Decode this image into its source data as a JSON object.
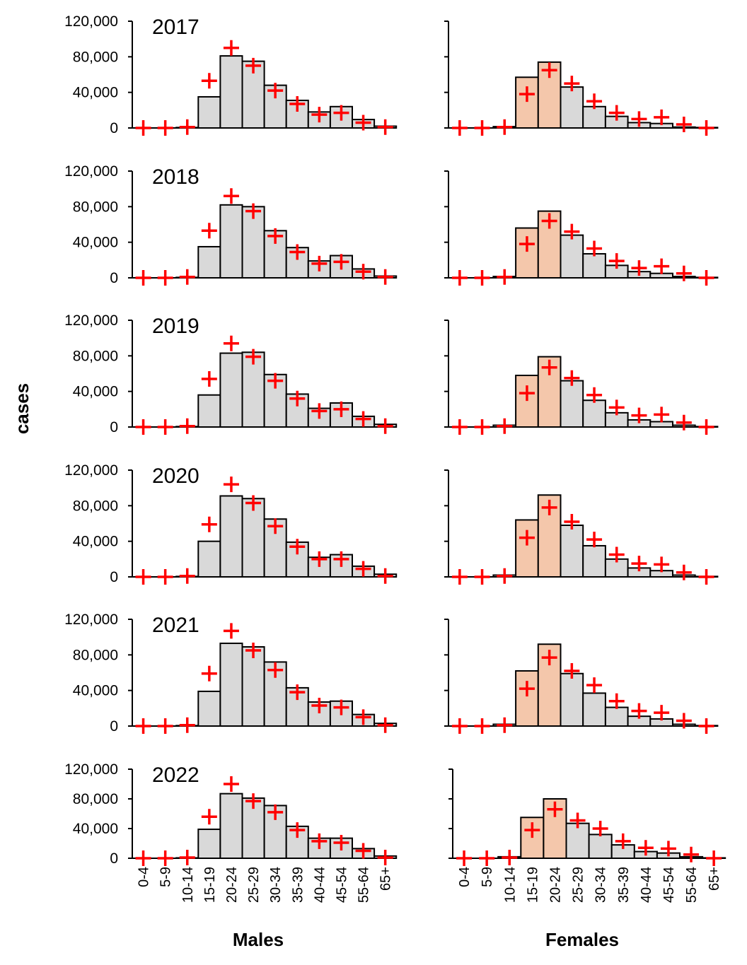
{
  "chart_data": {
    "type": "bar",
    "ylabel": "cases",
    "ylim": [
      0,
      120000
    ],
    "yticks": [
      0,
      40000,
      80000,
      120000
    ],
    "ytick_labels": [
      "0",
      "40,000",
      "80,000",
      "120,000"
    ],
    "categories": [
      "0-4",
      "5-9",
      "10-14",
      "15-19",
      "20-24",
      "25-29",
      "30-34",
      "35-39",
      "40-44",
      "45-54",
      "55-64",
      "65+"
    ],
    "column_labels": {
      "males": "Males",
      "females": "Females"
    },
    "colors": {
      "bar": "#d9d9d9",
      "highlight": "#f4c7ab",
      "marker": "#ff0000",
      "outline": "#000000"
    },
    "highlight_categories_females": [
      "15-19",
      "20-24"
    ],
    "marker_type": "cross",
    "panels": [
      {
        "year": "2017",
        "sex": "males",
        "bars": [
          0,
          0,
          500,
          35000,
          81000,
          75000,
          48000,
          31000,
          18000,
          24000,
          9500,
          2000
        ],
        "markers": [
          0,
          0,
          1000,
          53000,
          90000,
          70000,
          42000,
          27000,
          15000,
          17000,
          6000,
          1000
        ]
      },
      {
        "year": "2017",
        "sex": "females",
        "bars": [
          0,
          0,
          1500,
          57000,
          74000,
          46000,
          24000,
          13000,
          6000,
          5000,
          1000,
          500
        ],
        "markers": [
          0,
          0,
          1000,
          38000,
          65000,
          50000,
          30000,
          17000,
          10000,
          12000,
          4000,
          0
        ]
      },
      {
        "year": "2018",
        "sex": "males",
        "bars": [
          0,
          0,
          500,
          35000,
          82000,
          80000,
          53000,
          34000,
          19000,
          25000,
          10000,
          2000
        ],
        "markers": [
          0,
          0,
          1000,
          53000,
          92000,
          75000,
          47000,
          29000,
          16000,
          18000,
          7000,
          1000
        ]
      },
      {
        "year": "2018",
        "sex": "females",
        "bars": [
          0,
          0,
          1500,
          56000,
          75000,
          48000,
          27000,
          14000,
          7000,
          5000,
          1500,
          500
        ],
        "markers": [
          0,
          0,
          1000,
          38000,
          64000,
          52000,
          33000,
          19000,
          11000,
          13000,
          5000,
          0
        ]
      },
      {
        "year": "2019",
        "sex": "males",
        "bars": [
          0,
          0,
          500,
          36000,
          83000,
          84000,
          59000,
          37000,
          21000,
          27000,
          12000,
          3000
        ],
        "markers": [
          0,
          0,
          1000,
          54000,
          94000,
          79000,
          52000,
          32000,
          18000,
          20000,
          9000,
          1000
        ]
      },
      {
        "year": "2019",
        "sex": "females",
        "bars": [
          0,
          0,
          2000,
          58000,
          79000,
          52000,
          30000,
          16000,
          8000,
          6000,
          2000,
          500
        ],
        "markers": [
          0,
          0,
          1000,
          38000,
          67000,
          55000,
          36000,
          22000,
          13000,
          14000,
          5000,
          0
        ]
      },
      {
        "year": "2020",
        "sex": "males",
        "bars": [
          0,
          0,
          500,
          40000,
          91000,
          88000,
          65000,
          39000,
          22000,
          25000,
          12000,
          3000
        ],
        "markers": [
          0,
          0,
          1000,
          59000,
          104000,
          83000,
          57000,
          34000,
          20000,
          20000,
          9000,
          1000
        ]
      },
      {
        "year": "2020",
        "sex": "females",
        "bars": [
          0,
          0,
          2000,
          64000,
          92000,
          58000,
          35000,
          20000,
          10000,
          7000,
          2000,
          500
        ],
        "markers": [
          0,
          0,
          1000,
          44000,
          78000,
          62000,
          42000,
          25000,
          15000,
          14000,
          5000,
          0
        ]
      },
      {
        "year": "2021",
        "sex": "males",
        "bars": [
          0,
          0,
          500,
          39000,
          93000,
          89000,
          72000,
          43000,
          27000,
          28000,
          13000,
          3000
        ],
        "markers": [
          0,
          0,
          1000,
          59000,
          107000,
          85000,
          63000,
          38000,
          23000,
          21000,
          10000,
          1000
        ]
      },
      {
        "year": "2021",
        "sex": "females",
        "bars": [
          0,
          0,
          2000,
          62000,
          92000,
          59000,
          37000,
          21000,
          11000,
          8000,
          2000,
          500
        ],
        "markers": [
          0,
          0,
          1000,
          42000,
          77000,
          62000,
          46000,
          28000,
          17000,
          15000,
          6000,
          0
        ]
      },
      {
        "year": "2022",
        "sex": "males",
        "bars": [
          0,
          0,
          500,
          39000,
          87000,
          81000,
          71000,
          43000,
          27000,
          27000,
          13000,
          3000
        ],
        "markers": [
          0,
          0,
          1000,
          56000,
          100000,
          77000,
          62000,
          38000,
          23000,
          21000,
          10000,
          1000
        ]
      },
      {
        "year": "2022",
        "sex": "females",
        "bars": [
          0,
          0,
          2000,
          55000,
          80000,
          47000,
          32000,
          18000,
          9000,
          7000,
          2000,
          500
        ],
        "markers": [
          0,
          0,
          1000,
          38000,
          66000,
          51000,
          40000,
          23000,
          14000,
          13000,
          5000,
          0
        ]
      }
    ]
  }
}
